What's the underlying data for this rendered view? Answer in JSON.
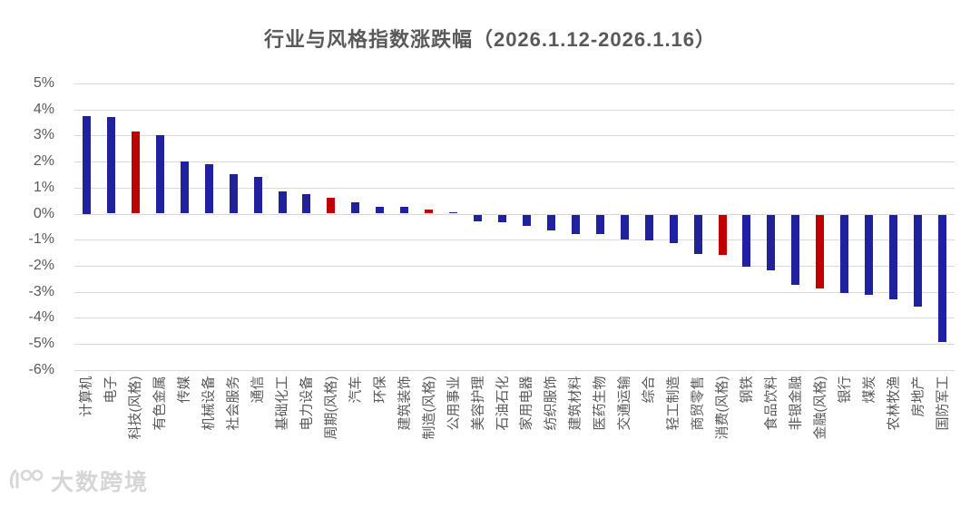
{
  "watermark": {
    "text": "大数跨境"
  },
  "colors": {
    "industry_bar": "#1f219e",
    "style_index_bar": "#c00000",
    "gridline": "#d9d9d9",
    "axis_text": "#595959",
    "title_text": "#595959",
    "watermark_text": "#cfcfcf"
  },
  "chart_data": {
    "type": "bar",
    "title": "行业与风格指数涨跌幅（2026.1.12-2026.1.16）",
    "xlabel": "",
    "ylabel": "",
    "ylim": [
      -6,
      5
    ],
    "ytick_labels": [
      "5%",
      "4%",
      "3%",
      "2%",
      "1%",
      "0%",
      "-1%",
      "-2%",
      "-3%",
      "-4%",
      "-5%",
      "-6%"
    ],
    "grid": true,
    "legend": "none",
    "value_unit": "percent",
    "categories": [
      "计算机",
      "电子",
      "科技(风格)",
      "有色金属",
      "传媒",
      "机械设备",
      "社会服务",
      "通信",
      "基础化工",
      "电力设备",
      "周期(风格)",
      "汽车",
      "环保",
      "建筑装饰",
      "制造(风格)",
      "公用事业",
      "美容护理",
      "石油石化",
      "家用电器",
      "纺织服饰",
      "建筑材料",
      "医药生物",
      "交通运输",
      "综合",
      "轻工制造",
      "商贸零售",
      "消费(风格)",
      "钢铁",
      "食品饮料",
      "非银金融",
      "金融(风格)",
      "银行",
      "煤炭",
      "农林牧渔",
      "房地产",
      "国防军工"
    ],
    "values": [
      3.75,
      3.7,
      3.15,
      3.0,
      2.0,
      1.9,
      1.5,
      1.4,
      0.85,
      0.75,
      0.6,
      0.45,
      0.25,
      0.25,
      0.15,
      0.05,
      -0.25,
      -0.3,
      -0.45,
      -0.6,
      -0.75,
      -0.75,
      -0.95,
      -1.0,
      -1.1,
      -1.5,
      -1.55,
      -2.0,
      -2.15,
      -2.7,
      -2.85,
      -3.0,
      -3.1,
      -3.25,
      -3.55,
      -4.9
    ],
    "style_index_red_indices": [
      2,
      10,
      14,
      26,
      30
    ],
    "style_index_categories": [
      "科技(风格)",
      "周期(风格)",
      "制造(风格)",
      "消费(风格)",
      "金融(风格)"
    ]
  }
}
